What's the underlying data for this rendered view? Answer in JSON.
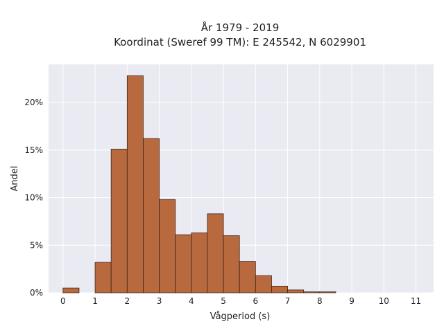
{
  "chart_data": {
    "type": "bar",
    "title": "År 1979 - 2019",
    "subtitle": "Koordinat (Sweref 99 TM): E 245542, N 6029901",
    "xlabel": "Vågperiod (s)",
    "ylabel": "Andel",
    "bin_width": 0.5,
    "bins": [
      {
        "x0": 0.0,
        "value": 0.5
      },
      {
        "x0": 0.5,
        "value": 0.0
      },
      {
        "x0": 1.0,
        "value": 3.2
      },
      {
        "x0": 1.5,
        "value": 15.1
      },
      {
        "x0": 2.0,
        "value": 22.8
      },
      {
        "x0": 2.5,
        "value": 16.2
      },
      {
        "x0": 3.0,
        "value": 9.8
      },
      {
        "x0": 3.5,
        "value": 6.1
      },
      {
        "x0": 4.0,
        "value": 6.3
      },
      {
        "x0": 4.5,
        "value": 8.3
      },
      {
        "x0": 5.0,
        "value": 6.0
      },
      {
        "x0": 5.5,
        "value": 3.3
      },
      {
        "x0": 6.0,
        "value": 1.8
      },
      {
        "x0": 6.5,
        "value": 0.7
      },
      {
        "x0": 7.0,
        "value": 0.3
      },
      {
        "x0": 7.5,
        "value": 0.1
      },
      {
        "x0": 8.0,
        "value": 0.1
      }
    ],
    "xlim": [
      -0.45,
      11.55
    ],
    "ylim": [
      0,
      24
    ],
    "x_ticks": [
      0,
      1,
      2,
      3,
      4,
      5,
      6,
      7,
      8,
      9,
      10,
      11
    ],
    "x_tick_labels": [
      "0",
      "1",
      "2",
      "3",
      "4",
      "5",
      "6",
      "7",
      "8",
      "9",
      "10",
      "11"
    ],
    "y_ticks": [
      0,
      5,
      10,
      15,
      20
    ],
    "y_tick_labels": [
      "0%",
      "5%",
      "10%",
      "15%",
      "20%"
    ],
    "grid": true,
    "colors": {
      "bar_fill": "#b86a3e",
      "bar_edge": "#3a2418",
      "plot_background": "#eaeaf2",
      "grid": "#ffffff"
    }
  }
}
